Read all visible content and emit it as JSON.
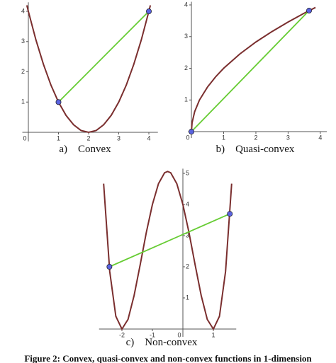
{
  "chart_data": [
    {
      "type": "line",
      "caption": "a)    Convex",
      "xlim": [
        -0.2,
        4.3
      ],
      "ylim": [
        -0.3,
        4.3
      ],
      "xticks": [
        0,
        1,
        2,
        3,
        4
      ],
      "yticks": [
        1,
        2,
        3,
        4
      ],
      "ytick_side": "left",
      "curve": {
        "color": "#7a2e2e",
        "x": [
          -0.05,
          0,
          0.25,
          0.5,
          0.75,
          1,
          1.25,
          1.5,
          1.75,
          2,
          2.25,
          2.5,
          2.75,
          3,
          3.25,
          3.5,
          3.75,
          4,
          4.05
        ],
        "values": [
          4.2,
          4,
          3.06,
          2.25,
          1.56,
          1,
          0.56,
          0.25,
          0.06,
          0,
          0.06,
          0.25,
          0.56,
          1,
          1.56,
          2.25,
          3.06,
          4,
          4.2
        ]
      },
      "chord": {
        "color": "#66cc33",
        "x": [
          1,
          4
        ],
        "values": [
          1,
          4
        ]
      },
      "points": {
        "color": "#5a63e0",
        "x": [
          1,
          4
        ],
        "values": [
          1,
          4
        ]
      }
    },
    {
      "type": "line",
      "caption": "b)    Quasi-convex",
      "xlim": [
        -0.1,
        4.2
      ],
      "ylim": [
        -0.2,
        4.1
      ],
      "xticks": [
        0,
        1,
        2,
        3,
        4
      ],
      "yticks": [
        1,
        2,
        3,
        4
      ],
      "ytick_side": "left",
      "curve": {
        "color": "#7a2e2e",
        "x": [
          0,
          0.02,
          0.1,
          0.25,
          0.5,
          0.75,
          1,
          1.5,
          2,
          2.5,
          3,
          3.5,
          3.85
        ],
        "values": [
          0,
          0.28,
          0.63,
          1,
          1.41,
          1.73,
          2,
          2.45,
          2.83,
          3.16,
          3.46,
          3.74,
          3.92
        ]
      },
      "chord": {
        "color": "#66cc33",
        "x": [
          0,
          3.65
        ],
        "values": [
          0,
          3.82
        ]
      },
      "points": {
        "color": "#5a63e0",
        "x": [
          0,
          3.65
        ],
        "values": [
          0,
          3.82
        ]
      }
    },
    {
      "type": "line",
      "caption": "c)    Non-convex",
      "xlim": [
        -2.75,
        1.75
      ],
      "ylim": [
        -0.25,
        5.15
      ],
      "xticks": [
        -2,
        -1,
        0,
        1
      ],
      "yticks": [
        1,
        2,
        3,
        4,
        5
      ],
      "ytick_side": "right",
      "curve": {
        "color": "#7a2e2e",
        "x": [
          -2.6,
          -2.4,
          -2.2,
          -2,
          -1.8,
          -1.6,
          -1.4,
          -1.2,
          -1,
          -0.8,
          -0.6,
          -0.5,
          -0.4,
          -0.2,
          0,
          0.2,
          0.4,
          0.6,
          0.8,
          1,
          1.2,
          1.4,
          1.6
        ],
        "values": [
          4.67,
          1.85,
          0.41,
          0,
          0.31,
          1.08,
          2.07,
          3.1,
          4,
          4.67,
          5.02,
          5.06,
          5.02,
          4.67,
          4,
          3.1,
          2.07,
          1.08,
          0.31,
          0,
          0.41,
          1.85,
          4.67
        ]
      },
      "chord": {
        "color": "#66cc33",
        "x": [
          -2.41,
          1.54
        ],
        "values": [
          2,
          3.7
        ]
      },
      "points": {
        "color": "#5a63e0",
        "x": [
          -2.41,
          1.54
        ],
        "values": [
          2,
          3.7
        ]
      }
    }
  ],
  "figure_caption": "Figure 2: Convex, quasi-convex and non-convex functions in 1-dimension"
}
